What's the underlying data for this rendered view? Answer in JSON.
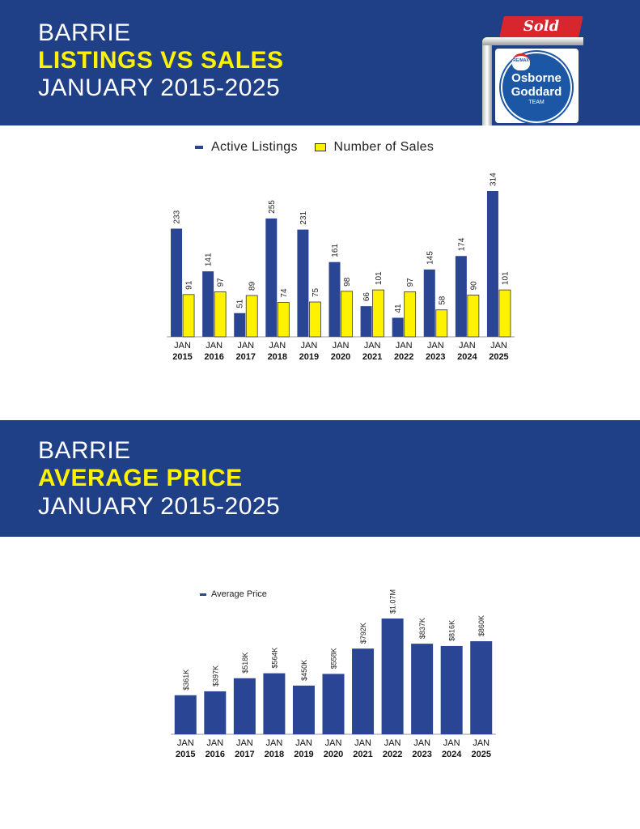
{
  "section1": {
    "title_line1": "BARRIE",
    "title_line2": "LISTINGS VS SALES",
    "title_line3": "JANUARY 2015-2025"
  },
  "section2": {
    "title_line1": "BARRIE",
    "title_line2": "AVERAGE PRICE",
    "title_line3": "JANUARY 2015-2025"
  },
  "logo": {
    "sold_text": "Sold",
    "brand_mark": "RE/MAX",
    "brand_line1": "Osborne",
    "brand_line2": "Goddard",
    "brand_line3": "TEAM"
  },
  "colors": {
    "banner": "#1f3f86",
    "accent_yellow": "#fff200",
    "bar_blue": "#2a4593",
    "bar_yellow": "#fff200"
  },
  "chart_data": [
    {
      "type": "bar",
      "categories": [
        "JAN 2015",
        "JAN 2016",
        "JAN 2017",
        "JAN 2018",
        "JAN 2019",
        "JAN 2020",
        "JAN 2021",
        "JAN 2022",
        "JAN 2023",
        "JAN 2024",
        "JAN 2025"
      ],
      "category_line1": [
        "JAN",
        "JAN",
        "JAN",
        "JAN",
        "JAN",
        "JAN",
        "JAN",
        "JAN",
        "JAN",
        "JAN",
        "JAN"
      ],
      "category_line2": [
        "2015",
        "2016",
        "2017",
        "2018",
        "2019",
        "2020",
        "2021",
        "2022",
        "2023",
        "2024",
        "2025"
      ],
      "series": [
        {
          "name": "Active Listings",
          "color": "#2a4593",
          "values": [
            233,
            141,
            51,
            255,
            231,
            161,
            66,
            41,
            145,
            174,
            314
          ]
        },
        {
          "name": "Number of Sales",
          "color": "#fff200",
          "values": [
            91,
            97,
            89,
            74,
            75,
            98,
            101,
            97,
            58,
            90,
            101
          ]
        }
      ],
      "ylim": [
        0,
        320
      ],
      "grid": false,
      "legend": "top-center",
      "data_labels": true
    },
    {
      "type": "bar",
      "categories": [
        "JAN 2015",
        "JAN 2016",
        "JAN 2017",
        "JAN 2018",
        "JAN 2019",
        "JAN 2020",
        "JAN 2021",
        "JAN 2022",
        "JAN 2023",
        "JAN 2024",
        "JAN 2025"
      ],
      "category_line1": [
        "JAN",
        "JAN",
        "JAN",
        "JAN",
        "JAN",
        "JAN",
        "JAN",
        "JAN",
        "JAN",
        "JAN",
        "JAN"
      ],
      "category_line2": [
        "2015",
        "2016",
        "2017",
        "2018",
        "2019",
        "2020",
        "2021",
        "2022",
        "2023",
        "2024",
        "2025"
      ],
      "series": [
        {
          "name": "Average Price",
          "color": "#2a4593",
          "values": [
            361000,
            397000,
            518000,
            564000,
            450000,
            558000,
            792000,
            1070000,
            837000,
            816000,
            860000
          ],
          "labels": [
            "$361K",
            "$397K",
            "$518K",
            "$564K",
            "$450K",
            "$558K",
            "$792K",
            "$1.07M",
            "$837K",
            "$816K",
            "$860K"
          ]
        }
      ],
      "ylim": [
        0,
        1100000
      ],
      "grid": false,
      "legend": "top-left",
      "data_labels": true
    }
  ]
}
